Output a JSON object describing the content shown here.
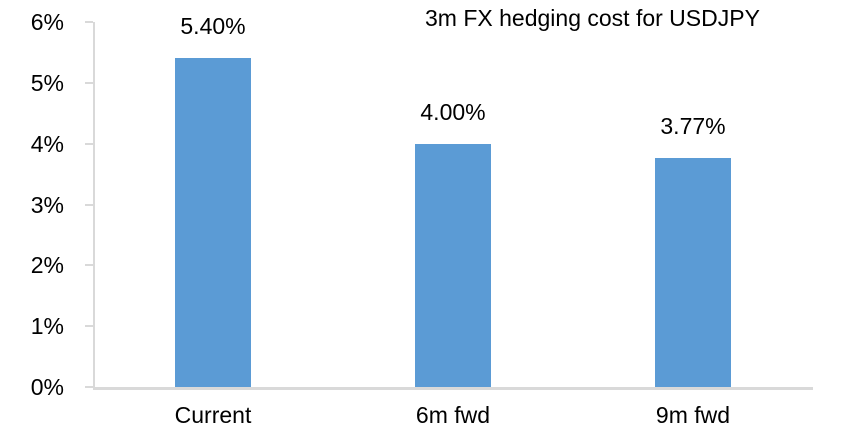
{
  "chart_data": {
    "type": "bar",
    "title": "3m FX hedging cost for USDJPY",
    "categories": [
      "Current",
      "6m fwd",
      "9m fwd"
    ],
    "values": [
      5.4,
      4.0,
      3.77
    ],
    "value_labels": [
      "5.40%",
      "4.00%",
      "3.77%"
    ],
    "xlabel": "",
    "ylabel": "",
    "ylim": [
      0,
      6
    ],
    "ytick_step": 1,
    "ytick_labels": [
      "0%",
      "1%",
      "2%",
      "3%",
      "4%",
      "5%",
      "6%"
    ],
    "grid": false,
    "legend_position": "none",
    "bar_color": "#5B9BD5",
    "axis_color": "#D9D9D9",
    "text_color": "#000000",
    "background_color": "#FFFFFF"
  }
}
